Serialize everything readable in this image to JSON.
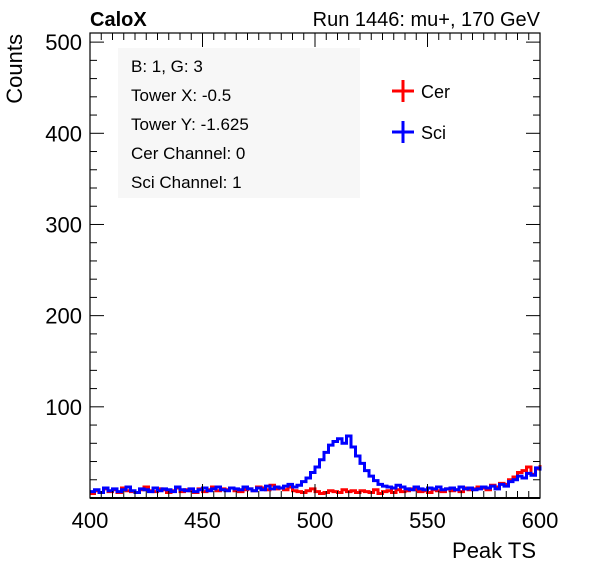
{
  "header": {
    "left": "CaloX",
    "right": "Run 1446: mu+, 170 GeV"
  },
  "info_box": [
    "B: 1, G: 3",
    "Tower X: -0.5",
    "Tower Y: -1.625",
    "Cer Channel: 0",
    "Sci Channel: 1"
  ],
  "colors": {
    "cer": "#ff0000",
    "sci": "#0000ff",
    "infobox": "#f7f7f7"
  },
  "chart_data": {
    "type": "line",
    "style": "step-histogram",
    "xlabel": "Peak TS",
    "ylabel": "Counts",
    "xlim": [
      400,
      600
    ],
    "ylim": [
      0,
      510
    ],
    "xticks": [
      400,
      450,
      500,
      550,
      600
    ],
    "yticks": [
      100,
      200,
      300,
      400,
      500
    ],
    "legend": {
      "position": "top-right",
      "entries": [
        "Cer",
        "Sci"
      ]
    },
    "grid": false,
    "bin_width": 2,
    "x_start": 400,
    "series": [
      {
        "name": "Cer",
        "color": "#ff0000",
        "values": [
          5,
          8,
          6,
          10,
          7,
          9,
          6,
          11,
          8,
          7,
          6,
          9,
          12,
          8,
          7,
          10,
          9,
          6,
          8,
          11,
          7,
          9,
          8,
          6,
          10,
          7,
          9,
          12,
          8,
          10,
          9,
          11,
          8,
          7,
          9,
          10,
          8,
          12,
          11,
          9,
          14,
          10,
          11,
          9,
          12,
          8,
          7,
          6,
          8,
          10,
          7,
          5,
          6,
          8,
          7,
          6,
          9,
          7,
          8,
          6,
          8,
          7,
          6,
          9,
          5,
          7,
          8,
          6,
          9,
          7,
          8,
          10,
          9,
          7,
          8,
          6,
          9,
          8,
          7,
          10,
          8,
          9,
          7,
          11,
          9,
          10,
          12,
          11,
          9,
          14,
          12,
          16,
          15,
          20,
          23,
          28,
          30,
          34,
          26,
          32,
          36
        ]
      },
      {
        "name": "Sci",
        "color": "#0000ff",
        "values": [
          7,
          9,
          6,
          11,
          8,
          10,
          7,
          9,
          12,
          8,
          6,
          10,
          9,
          7,
          11,
          8,
          10,
          9,
          7,
          12,
          9,
          8,
          10,
          7,
          9,
          11,
          8,
          10,
          12,
          9,
          8,
          11,
          10,
          9,
          12,
          10,
          8,
          11,
          9,
          13,
          10,
          12,
          11,
          13,
          15,
          12,
          14,
          18,
          22,
          28,
          34,
          42,
          50,
          58,
          62,
          65,
          60,
          68,
          56,
          46,
          38,
          30,
          24,
          19,
          15,
          13,
          12,
          11,
          14,
          12,
          10,
          9,
          12,
          10,
          9,
          11,
          10,
          12,
          9,
          10,
          11,
          9,
          12,
          10,
          11,
          9,
          10,
          12,
          11,
          13,
          10,
          15,
          13,
          18,
          20,
          24,
          22,
          27,
          25,
          33,
          30
        ]
      }
    ]
  }
}
